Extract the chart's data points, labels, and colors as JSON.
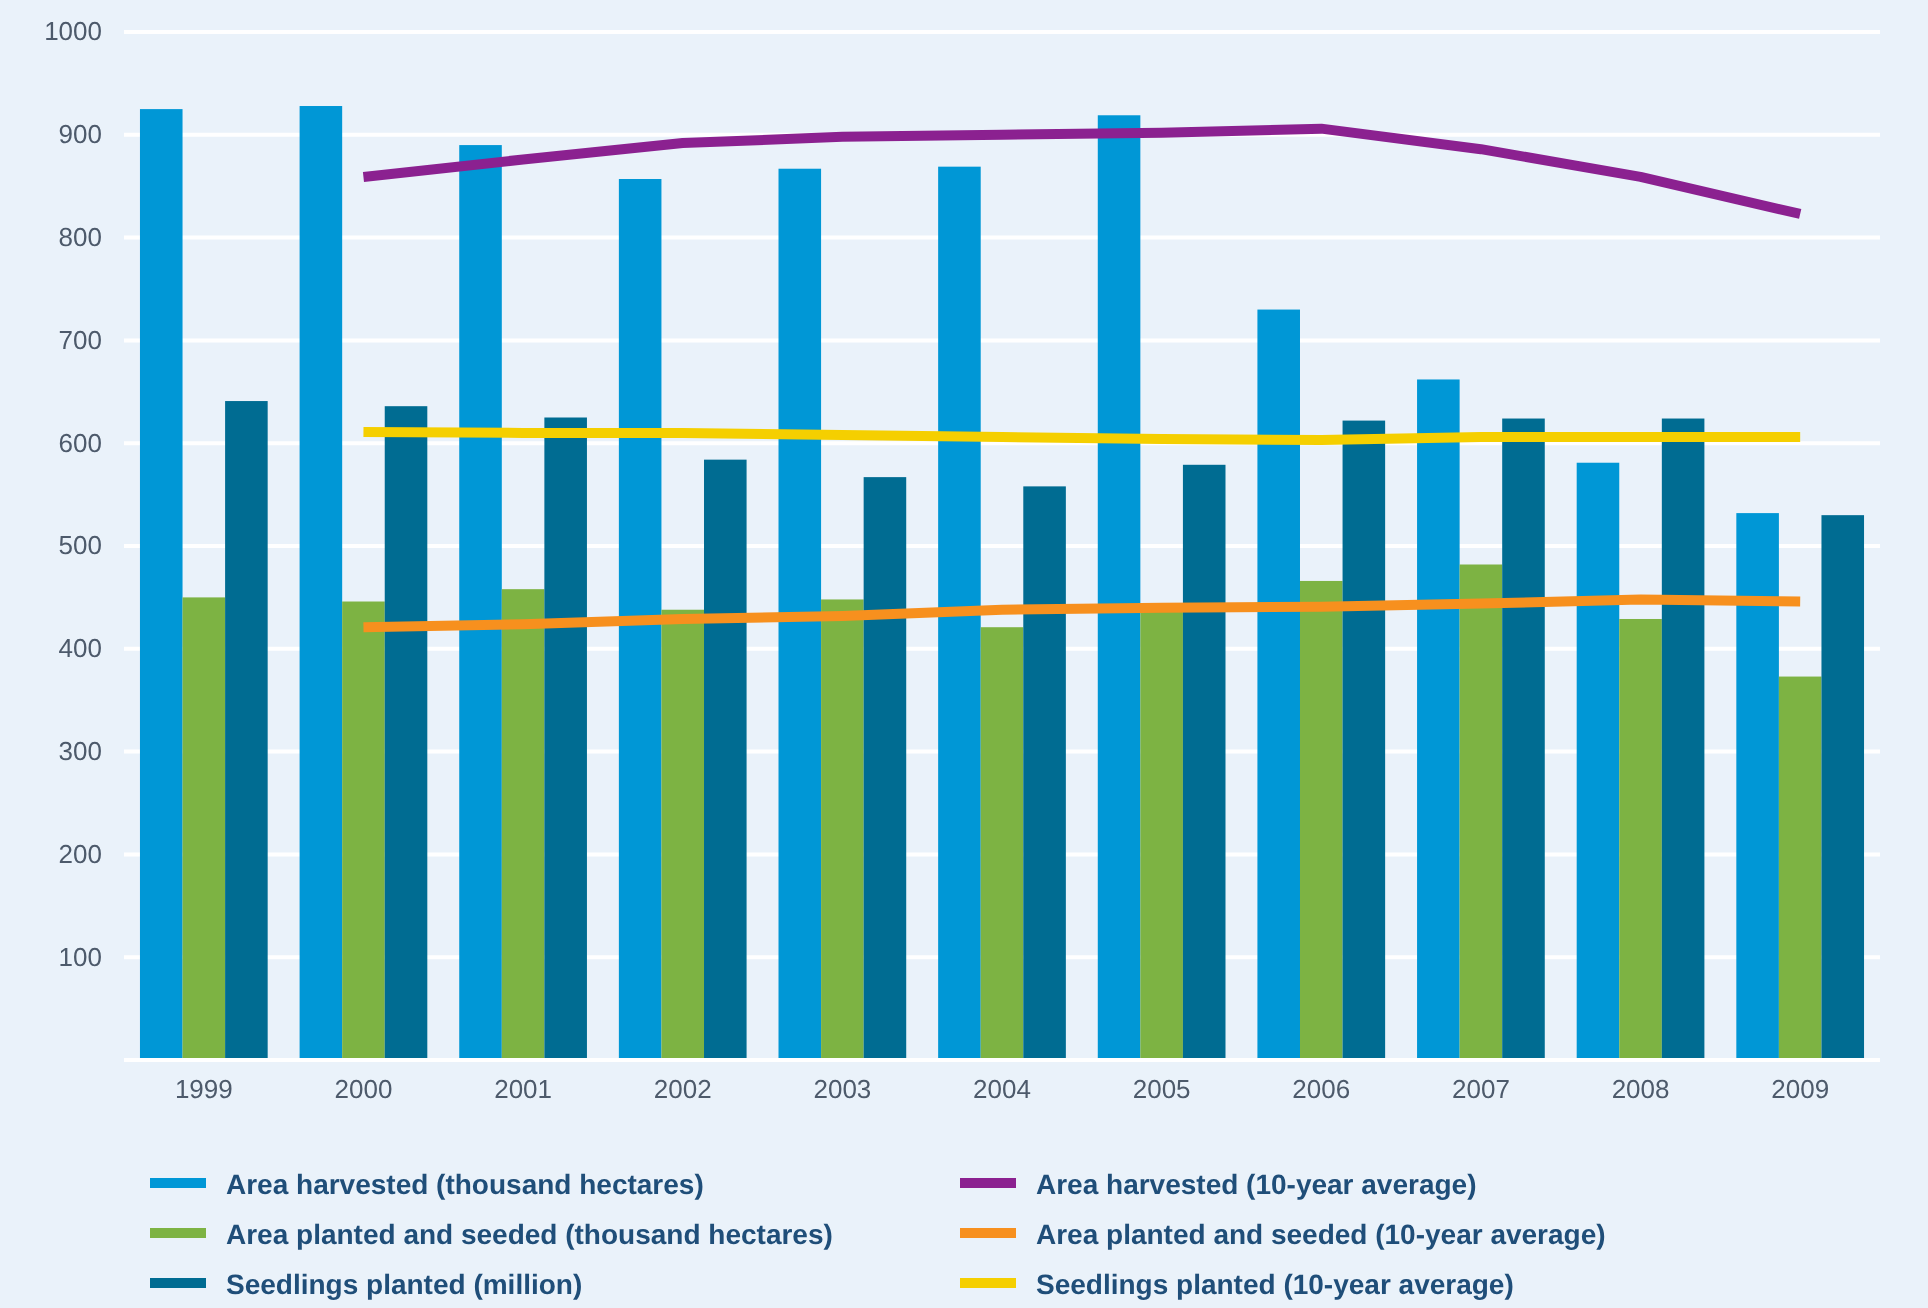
{
  "chart_data": {
    "type": "bar",
    "categories": [
      "1999",
      "2000",
      "2001",
      "2002",
      "2003",
      "2004",
      "2005",
      "2006",
      "2007",
      "2008",
      "2009"
    ],
    "series": [
      {
        "name": "Area harvested (thousand hectares)",
        "color": "#0097d6",
        "values": [
          925,
          928,
          890,
          857,
          867,
          869,
          919,
          730,
          662,
          581,
          532
        ]
      },
      {
        "name": "Area planted and seeded (thousand hectares)",
        "color": "#7db343",
        "values": [
          450,
          446,
          458,
          438,
          448,
          421,
          437,
          466,
          482,
          429,
          373
        ]
      },
      {
        "name": "Seedlings planted (million)",
        "color": "#006c92",
        "values": [
          641,
          636,
          625,
          584,
          567,
          558,
          579,
          622,
          624,
          624,
          530
        ]
      },
      {
        "name": "Area harvested (10-year average)",
        "type": "line",
        "color": "#8b2190",
        "values": [
          null,
          859,
          876,
          892,
          898,
          900,
          902,
          906,
          886,
          859,
          823
        ]
      },
      {
        "name": "Area planted and seeded (10-year average)",
        "type": "line",
        "color": "#f7901e",
        "values": [
          null,
          421,
          424,
          429,
          432,
          438,
          440,
          441,
          444,
          448,
          446
        ]
      },
      {
        "name": "Seedlings planted (10-year average)",
        "type": "line",
        "color": "#f5cf00",
        "values": [
          null,
          611,
          610,
          610,
          608,
          606,
          604,
          603,
          606,
          606,
          606
        ]
      }
    ],
    "ylim": [
      0,
      1000
    ],
    "yticks": [
      100,
      200,
      300,
      400,
      500,
      600,
      700,
      800,
      900,
      1000
    ],
    "grid": "y",
    "legend": "bottom",
    "marker": "none",
    "line_style": "solid"
  }
}
